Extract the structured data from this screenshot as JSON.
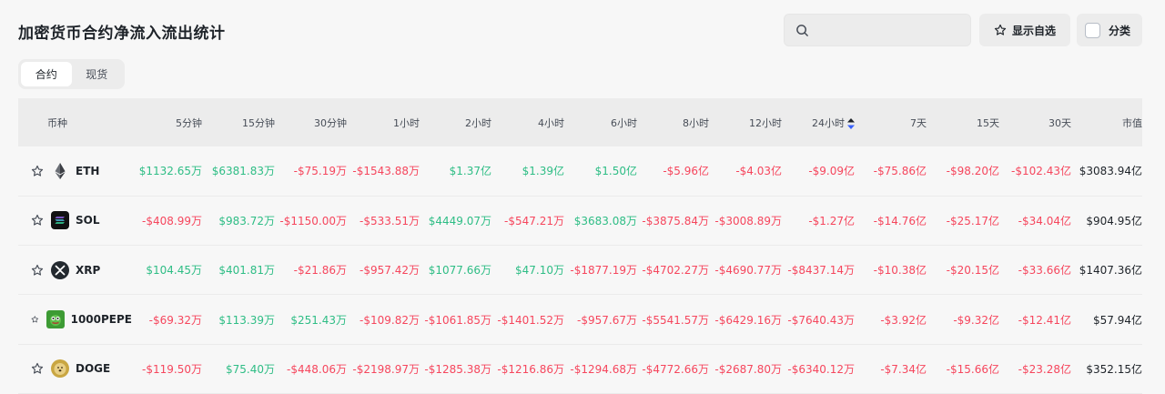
{
  "page": {
    "title": "加密货币合约净流入流出统计"
  },
  "search": {
    "placeholder": ""
  },
  "toolbar": {
    "watchlist_label": "显示自选",
    "category_label": "分类"
  },
  "tabs": [
    {
      "label": "合约",
      "active": true
    },
    {
      "label": "现货",
      "active": false
    }
  ],
  "table": {
    "headers": [
      "币种",
      "5分钟",
      "15分钟",
      "30分钟",
      "1小时",
      "2小时",
      "4小时",
      "6小时",
      "8小时",
      "12小时",
      "24小时",
      "7天",
      "15天",
      "30天",
      "市值"
    ],
    "rows": [
      {
        "symbol": "ETH",
        "icon": "eth-icon",
        "values": [
          "$1132.65万",
          "$6381.83万",
          "-$75.19万",
          "-$1543.88万",
          "$1.37亿",
          "$1.39亿",
          "$1.50亿",
          "-$5.96亿",
          "-$4.03亿",
          "-$9.09亿",
          "-$75.86亿",
          "-$98.20亿",
          "-$102.43亿"
        ],
        "mcap": "$3083.94亿"
      },
      {
        "symbol": "SOL",
        "icon": "sol-icon",
        "values": [
          "-$408.99万",
          "$983.72万",
          "-$1150.00万",
          "-$533.51万",
          "$4449.07万",
          "-$547.21万",
          "$3683.08万",
          "-$3875.84万",
          "-$3008.89万",
          "-$1.27亿",
          "-$14.76亿",
          "-$25.17亿",
          "-$34.04亿"
        ],
        "mcap": "$904.95亿"
      },
      {
        "symbol": "XRP",
        "icon": "xrp-icon",
        "values": [
          "$104.45万",
          "$401.81万",
          "-$21.86万",
          "-$957.42万",
          "$1077.66万",
          "$47.10万",
          "-$1877.19万",
          "-$4702.27万",
          "-$4690.77万",
          "-$8437.14万",
          "-$10.38亿",
          "-$20.15亿",
          "-$33.66亿"
        ],
        "mcap": "$1407.36亿"
      },
      {
        "symbol": "1000PEPE",
        "icon": "pepe-icon",
        "values": [
          "-$69.32万",
          "$113.39万",
          "$251.43万",
          "-$109.82万",
          "-$1061.85万",
          "-$1401.52万",
          "-$957.67万",
          "-$5541.57万",
          "-$6429.16万",
          "-$7640.43万",
          "-$3.92亿",
          "-$9.32亿",
          "-$12.41亿"
        ],
        "mcap": "$57.94亿"
      },
      {
        "symbol": "DOGE",
        "icon": "doge-icon",
        "values": [
          "-$119.50万",
          "$75.40万",
          "-$448.06万",
          "-$2198.97万",
          "-$1285.38万",
          "-$1216.86万",
          "-$1294.68万",
          "-$4772.66万",
          "-$2687.80万",
          "-$6340.12万",
          "-$7.34亿",
          "-$15.66亿",
          "-$23.28亿"
        ],
        "mcap": "$352.15亿"
      }
    ]
  },
  "colors": {
    "positive": "#2ebd85",
    "negative": "#f6465d"
  }
}
